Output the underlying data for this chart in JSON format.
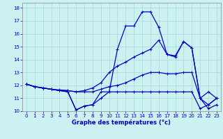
{
  "xlabel": "Graphe des températures (°c)",
  "background_color": "#cdf0f0",
  "grid_color": "#aadddd",
  "line_color": "#0000cc",
  "xlim": [
    -0.5,
    23.5
  ],
  "ylim": [
    10,
    18.4
  ],
  "yticks": [
    10,
    11,
    12,
    13,
    14,
    15,
    16,
    17,
    18
  ],
  "xticks": [
    0,
    1,
    2,
    3,
    4,
    5,
    6,
    7,
    8,
    9,
    10,
    11,
    12,
    13,
    14,
    15,
    16,
    17,
    18,
    19,
    20,
    21,
    22,
    23
  ],
  "series": [
    {
      "x": [
        0,
        1,
        2,
        3,
        4,
        5,
        6,
        7,
        8,
        9,
        10,
        11,
        12,
        13,
        14,
        15,
        16,
        17,
        18,
        19,
        20,
        21,
        22,
        23
      ],
      "y": [
        12.1,
        11.9,
        11.8,
        11.7,
        11.6,
        11.5,
        10.1,
        10.4,
        10.5,
        11.0,
        11.5,
        14.8,
        16.6,
        16.6,
        17.7,
        17.7,
        16.5,
        14.4,
        14.3,
        15.4,
        14.9,
        11.0,
        10.2,
        10.5
      ]
    },
    {
      "x": [
        0,
        1,
        2,
        3,
        4,
        5,
        6,
        7,
        8,
        9,
        10,
        11,
        12,
        13,
        14,
        15,
        16,
        17,
        18,
        19,
        20,
        21,
        22,
        23
      ],
      "y": [
        12.1,
        11.9,
        11.8,
        11.7,
        11.65,
        11.6,
        11.5,
        11.6,
        11.8,
        12.2,
        13.0,
        13.5,
        13.8,
        14.2,
        14.5,
        14.8,
        15.5,
        14.4,
        14.2,
        15.4,
        14.9,
        11.0,
        10.5,
        11.0
      ]
    },
    {
      "x": [
        0,
        1,
        2,
        3,
        4,
        5,
        6,
        7,
        8,
        9,
        10,
        11,
        12,
        13,
        14,
        15,
        16,
        17,
        18,
        19,
        20,
        21,
        22,
        23
      ],
      "y": [
        12.1,
        11.9,
        11.8,
        11.7,
        11.6,
        11.6,
        11.5,
        11.5,
        11.5,
        11.7,
        11.9,
        12.0,
        12.2,
        12.5,
        12.8,
        13.0,
        13.0,
        12.9,
        12.9,
        13.0,
        13.0,
        11.0,
        11.5,
        11.0
      ]
    },
    {
      "x": [
        0,
        1,
        2,
        3,
        4,
        5,
        6,
        7,
        8,
        9,
        10,
        11,
        12,
        13,
        14,
        15,
        16,
        17,
        18,
        19,
        20,
        21,
        22,
        23
      ],
      "y": [
        12.1,
        11.9,
        11.8,
        11.7,
        11.6,
        11.5,
        10.1,
        10.4,
        10.5,
        11.5,
        11.5,
        11.5,
        11.5,
        11.5,
        11.5,
        11.5,
        11.5,
        11.5,
        11.5,
        11.5,
        11.5,
        10.2,
        10.5,
        11.0
      ]
    }
  ]
}
